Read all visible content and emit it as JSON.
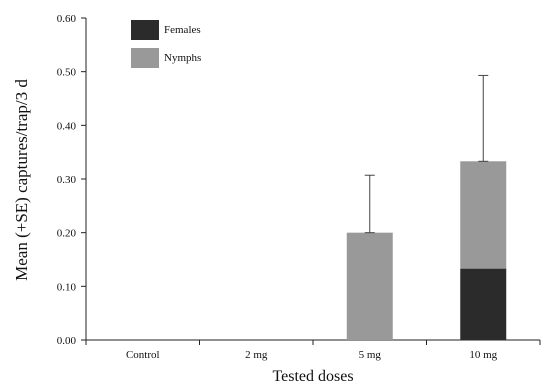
{
  "chart_data": {
    "type": "bar",
    "stacked": true,
    "categories": [
      "Control",
      "2 mg",
      "5 mg",
      "10 mg"
    ],
    "series": [
      {
        "name": "Females",
        "color": "#2b2b2b",
        "values": [
          0,
          0,
          0,
          0.133
        ]
      },
      {
        "name": "Nymphs",
        "color": "#999999",
        "values": [
          0,
          0,
          0.2,
          0.2
        ]
      }
    ],
    "totals": [
      0,
      0,
      0.2,
      0.333
    ],
    "error_upper": [
      0,
      0,
      0.107,
      0.16
    ],
    "xlabel": "Tested doses",
    "ylabel": "Mean (+SE) captures/trap/3 d",
    "ylim": [
      0,
      0.6
    ],
    "yticks": [
      "0.00",
      "0.10",
      "0.20",
      "0.30",
      "0.40",
      "0.50",
      "0.60"
    ],
    "grid": false,
    "legend_position": "top-left"
  }
}
